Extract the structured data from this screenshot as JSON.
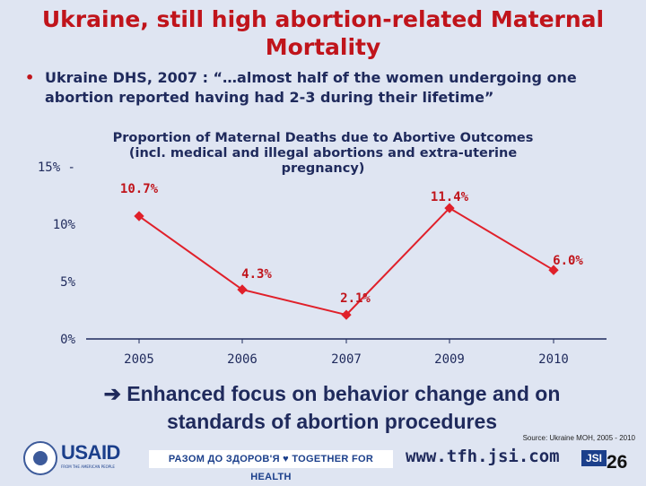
{
  "slide": {
    "title": "Ukraine, still high abortion-related Maternal Mortality",
    "bullet": "Ukraine DHS, 2007 : “…almost half of the women undergoing one abortion reported having had 2-3 during their lifetime”",
    "conclusion": "Enhanced focus on behavior change and on standards of abortion procedures",
    "conclusion_arrow": "arrow-right-icon",
    "source": "Source: Ukraine MOH, 2005 - 2010",
    "website": "www.tfh.jsi.com",
    "page_number": "26",
    "usaid_logo": "USAID",
    "usaid_tagline": "FROM THE AMERICAN PEOPLE",
    "tfh_logo": "РАЗОМ ДО ЗДОРОВ'Я ♥ TOGETHER FOR HEALTH",
    "jsi_logo": "JSI"
  },
  "chart_data": {
    "type": "line",
    "title": "Proportion of Maternal Deaths due to Abortive Outcomes (incl. medical and illegal abortions and extra-uterine pregnancy)",
    "categories": [
      "2005",
      "2006",
      "2007",
      "2009",
      "2010"
    ],
    "series": [
      {
        "values": [
          10.7,
          4.3,
          2.1,
          11.4,
          6.0
        ],
        "labels": [
          "10.7%",
          "4.3%",
          "2.1%",
          "11.4%",
          "6.0%"
        ],
        "color": "#e0202a"
      }
    ],
    "yticks": [
      {
        "value": 15,
        "label": "15% -"
      },
      {
        "value": 10,
        "label": "10%"
      },
      {
        "value": 5,
        "label": "5%"
      },
      {
        "value": 0,
        "label": "0%"
      }
    ],
    "ylim": [
      0,
      15
    ],
    "grid": false,
    "axis_color": "#1f2a5c"
  }
}
